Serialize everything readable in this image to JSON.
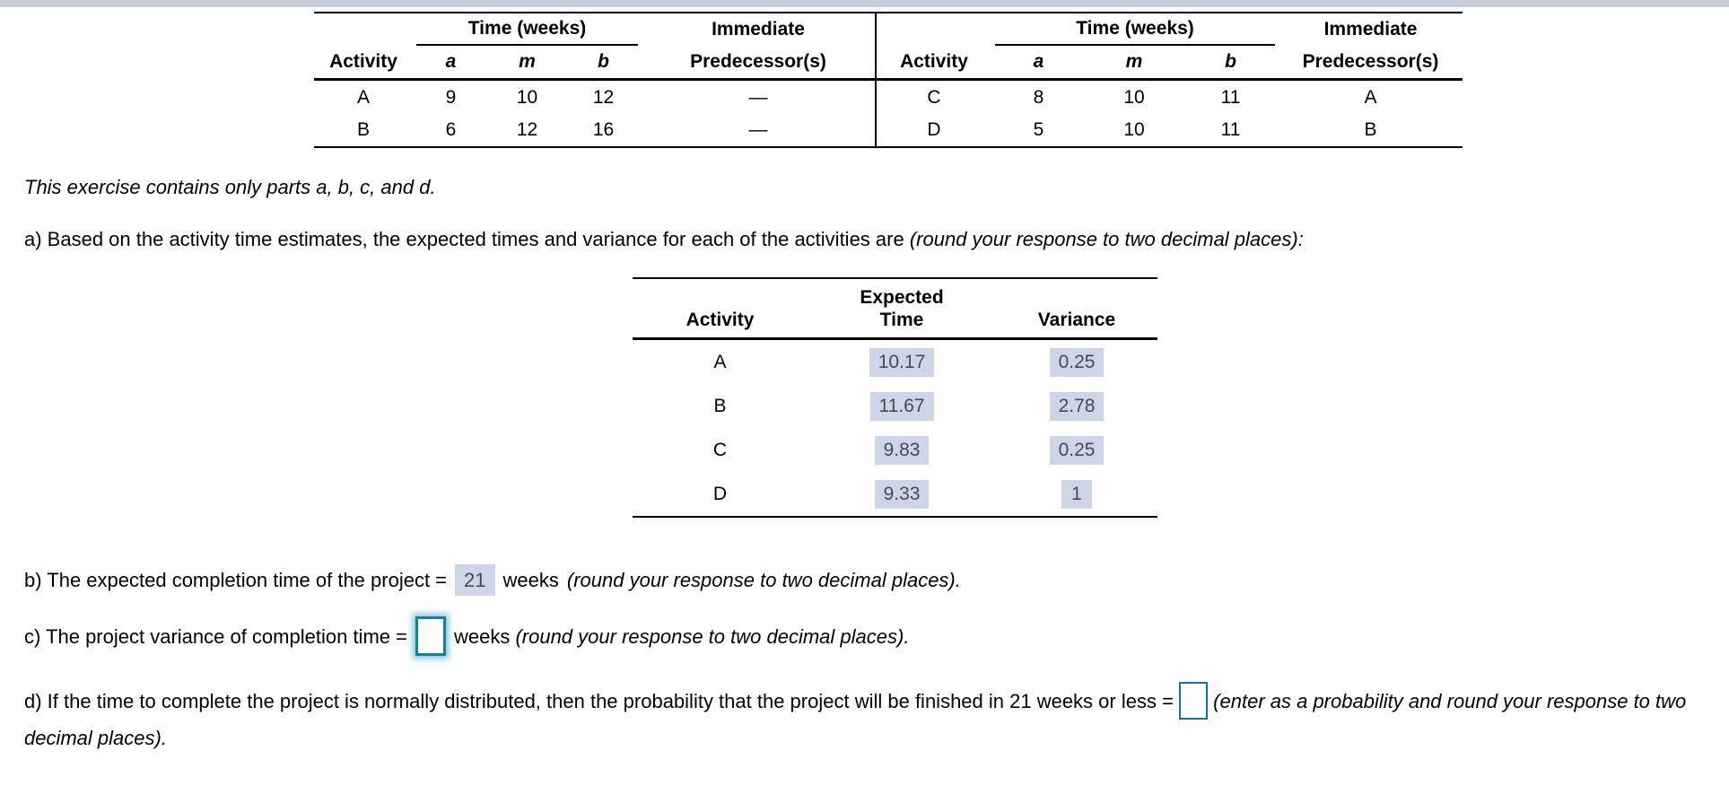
{
  "top_bar": {
    "color": "#c9cedf"
  },
  "colors": {
    "highlight_bg": "#cdd5e8",
    "answer_text": "#4a4a4e",
    "input_border_teal": "#17768b",
    "table_line": "#000000"
  },
  "main_table": {
    "time_weeks_label": "Time (weeks)",
    "immediate_label": "Immediate",
    "predecessors_label": "Predecessor(s)",
    "activity_label": "Activity",
    "a_label": "a",
    "m_label": "m",
    "b_label": "b",
    "left_rows": [
      {
        "activity": "A",
        "a": "9",
        "m": "10",
        "b": "12",
        "predecessor": "—"
      },
      {
        "activity": "B",
        "a": "6",
        "m": "12",
        "b": "16",
        "predecessor": "—"
      }
    ],
    "right_rows": [
      {
        "activity": "C",
        "a": "8",
        "m": "10",
        "b": "11",
        "predecessor": "A"
      },
      {
        "activity": "D",
        "a": "5",
        "m": "10",
        "b": "11",
        "predecessor": "B"
      }
    ]
  },
  "intro": {
    "text": "This exercise contains only parts a, b, c, and d."
  },
  "part_a": {
    "prefix": "a) Based on the activity time estimates, the expected times and variance for each of the activities are ",
    "italic_suffix": "(round your response to two decimal places):",
    "table": {
      "activity_header": "Activity",
      "expected_header_line1": "Expected",
      "expected_header_line2": "Time",
      "variance_header": "Variance",
      "rows": [
        {
          "activity": "A",
          "expected_time": "10.17",
          "variance": "0.25"
        },
        {
          "activity": "B",
          "expected_time": "11.67",
          "variance": "2.78"
        },
        {
          "activity": "C",
          "expected_time": "9.83",
          "variance": "0.25"
        },
        {
          "activity": "D",
          "expected_time": "9.33",
          "variance": "1"
        }
      ]
    }
  },
  "part_b": {
    "prefix": "b) The expected completion time of the project =",
    "answer": "21",
    "mid": "weeks",
    "italic_suffix": "(round your response to two decimal places)."
  },
  "part_c": {
    "prefix": "c) The project variance of completion time =",
    "input_value": "",
    "mid": "weeks",
    "italic_suffix": "(round your response to two decimal places)."
  },
  "part_d": {
    "prefix": "d) If the time to complete the project is normally distributed, then the probability that the project will be finished in 21 weeks or less = ",
    "input_value": "",
    "italic_suffix": "(enter as a probability and round your response to two decimal places)."
  }
}
